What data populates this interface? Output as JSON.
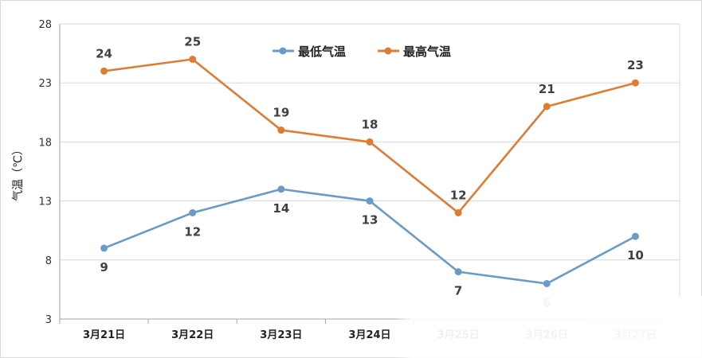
{
  "chart_data": {
    "type": "line",
    "categories": [
      "3月21日",
      "3月22日",
      "3月23日",
      "3月24日",
      "3月25日",
      "3月26日",
      "3月27日"
    ],
    "series": [
      {
        "name": "最低气温",
        "values": [
          9,
          12,
          14,
          13,
          7,
          6,
          10
        ],
        "color": "#6a9bc8"
      },
      {
        "name": "最高气温",
        "values": [
          24,
          25,
          19,
          18,
          12,
          21,
          23
        ],
        "color": "#e07b32"
      }
    ],
    "ylabel": "气温（℃）",
    "yticks": [
      3,
      8,
      13,
      18,
      23,
      28
    ],
    "ylim": [
      3,
      28
    ],
    "grid": true,
    "legend_position": "top-center"
  }
}
